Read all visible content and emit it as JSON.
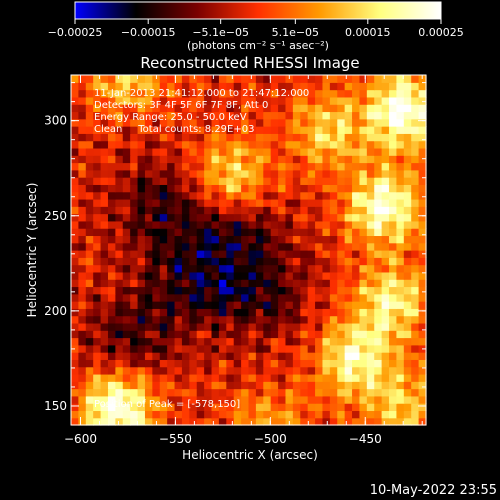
{
  "chart_data": {
    "type": "heatmap",
    "title": "Reconstructed RHESSI Image",
    "xlabel": "Heliocentric X (arcsec)",
    "ylabel": "Heliocentric Y (arcsec)",
    "xlim": [
      -605,
      -418
    ],
    "ylim": [
      140,
      324
    ],
    "xticks": [
      -600,
      -550,
      -500,
      -450
    ],
    "xtick_labels": [
      "−600",
      "−550",
      "−500",
      "−450"
    ],
    "yticks": [
      150,
      200,
      250,
      300
    ],
    "ytick_labels": [
      "150",
      "200",
      "250",
      "300"
    ],
    "colorbar": {
      "range": [
        -0.00025,
        0.00025
      ],
      "ticks": [
        -0.00025,
        -0.00015,
        -5.1e-05,
        5.1e-05,
        0.00015,
        0.00025
      ],
      "tick_labels": [
        "−0.00025",
        "−0.00015",
        "−5.1e−05",
        "5.1e−05",
        "0.00015",
        "0.00025"
      ],
      "units": "(photons cm⁻² s⁻¹ asec⁻²)",
      "colormap": [
        "#0000ff",
        "#000000",
        "#7a0000",
        "#ff3000",
        "#ff9900",
        "#ffff80",
        "#ffffff"
      ]
    },
    "annotations": [
      "11-Jan-2013 21:41:12.000 to 21:47:12.000",
      "Detectors: 3F 4F 5F 6F 7F 8F, Att 0",
      "Energy Range: 25.0 - 50.0 keV",
      "Clean     Total counts: 8.29E+03"
    ],
    "peak_label": "Position of Peak = [-578,150]",
    "peak": [
      -578,
      150
    ],
    "hot_regions": [
      {
        "x": -580,
        "y": 150,
        "level": 1.0
      },
      {
        "x": -430,
        "y": 305,
        "level": 0.95
      },
      {
        "x": -440,
        "y": 255,
        "level": 0.9
      },
      {
        "x": -435,
        "y": 205,
        "level": 0.7
      },
      {
        "x": -455,
        "y": 175,
        "level": 0.75
      },
      {
        "x": -520,
        "y": 270,
        "level": 0.7
      },
      {
        "x": -575,
        "y": 325,
        "level": 0.6
      },
      {
        "x": -470,
        "y": 295,
        "level": 0.55
      },
      {
        "x": -500,
        "y": 140,
        "level": 0.4
      },
      {
        "x": -430,
        "y": 150,
        "level": 0.5
      }
    ],
    "cold_regions": [
      {
        "x": -560,
        "y": 255
      },
      {
        "x": -520,
        "y": 245
      },
      {
        "x": -575,
        "y": 185
      },
      {
        "x": -505,
        "y": 210
      },
      {
        "x": -540,
        "y": 215
      }
    ]
  },
  "footer": {
    "date": "10-May-2022 23:55"
  }
}
